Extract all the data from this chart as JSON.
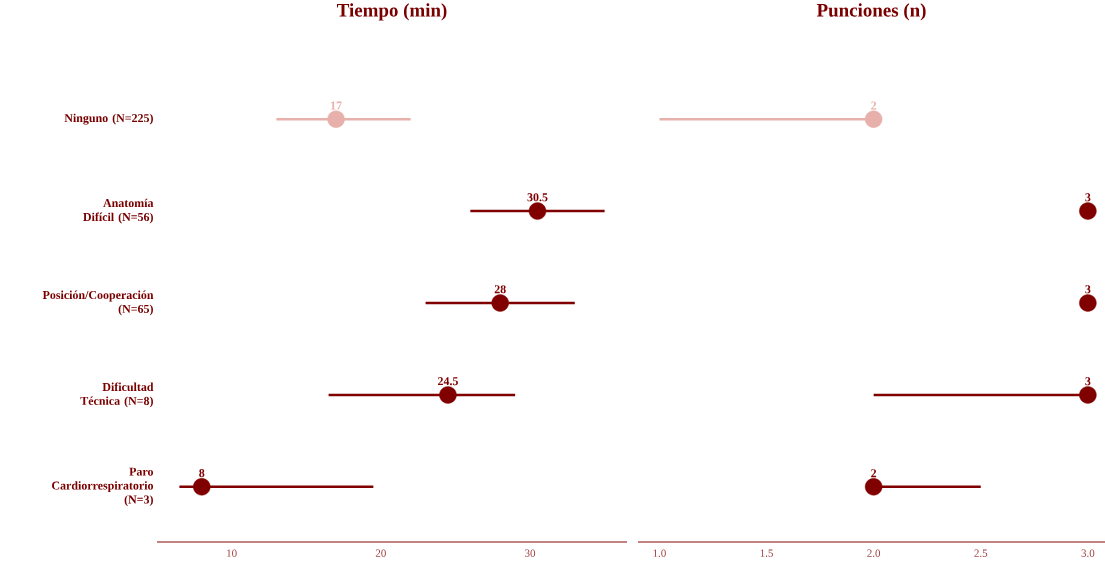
{
  "chart_data": [
    {
      "type": "scatter",
      "orientation": "horizontal",
      "title": "Tiempo (min)",
      "categories": [
        "Ninguno (N=225)",
        "Anatomía Difícil (N=56)",
        "Posición/Cooperación (N=65)",
        "Dificultad Técnica (N=8)",
        "Paro Cardiorrespiratorio (N=3)"
      ],
      "values": [
        17,
        30.5,
        28,
        24.5,
        8
      ],
      "errors": [
        [
          13,
          22
        ],
        [
          26,
          35
        ],
        [
          23,
          33
        ],
        [
          16.5,
          29
        ],
        [
          6.5,
          19.5
        ]
      ],
      "colors": [
        "#e8b0aa",
        "#800000",
        "#800000",
        "#800000",
        "#800000"
      ],
      "xlim": [
        5,
        36.5
      ],
      "xticks": [
        10,
        20,
        30
      ],
      "marker": "circle",
      "data_labels": true
    },
    {
      "type": "scatter",
      "orientation": "horizontal",
      "title": "Punciones (n)",
      "categories": [
        null,
        null,
        null,
        null,
        null
      ],
      "values": [
        2,
        3,
        3,
        3,
        2
      ],
      "errors": [
        [
          1,
          2
        ],
        null,
        null,
        [
          2,
          3
        ],
        [
          2,
          2.5
        ]
      ],
      "colors": [
        "#e8b0aa",
        "#800000",
        "#800000",
        "#800000",
        "#800000"
      ],
      "xlim": [
        0.9,
        3.08
      ],
      "xticks": [
        {
          "value": 1,
          "label": "1.0"
        },
        {
          "value": 1.5,
          "label": "1.5"
        },
        {
          "value": 2,
          "label": "2.0"
        },
        {
          "value": 2.5,
          "label": "2.5"
        },
        {
          "value": 3,
          "label": "3.0"
        }
      ],
      "marker": "circle",
      "data_labels": true
    }
  ]
}
